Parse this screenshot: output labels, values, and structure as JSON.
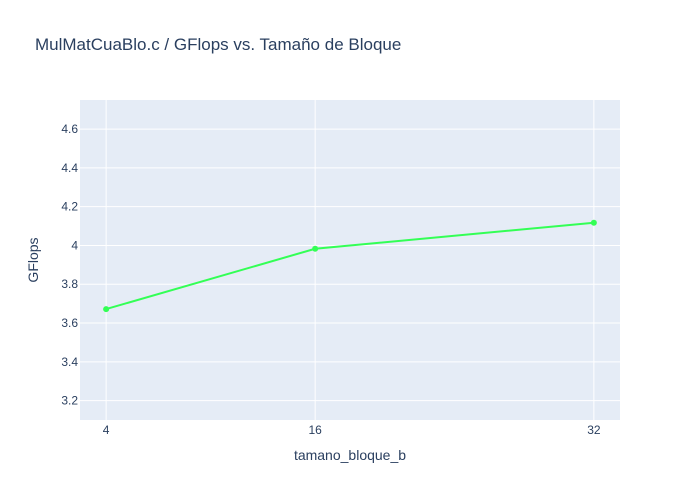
{
  "chart_data": {
    "type": "line",
    "title": "MulMatCuaBlo.c / GFlops vs. Tamaño de Bloque",
    "xlabel": "tamano_bloque_b",
    "ylabel": "GFlops",
    "x": [
      4,
      16,
      32
    ],
    "series": [
      {
        "values": [
          3.672,
          3.983,
          4.117
        ],
        "color": "#33ff55"
      }
    ],
    "xlim": [
      2.5,
      33.5
    ],
    "xticks": [
      4,
      16,
      32
    ],
    "ylim": [
      3.1,
      4.75
    ],
    "yticks": [
      3.2,
      3.4,
      3.6,
      3.8,
      4,
      4.2,
      4.4,
      4.6
    ],
    "ytick_labels": [
      "3.2",
      "3.4",
      "3.6",
      "3.8",
      "4",
      "4.2",
      "4.4",
      "4.6"
    ],
    "grid": true,
    "plot_bg": "#e5ecf6",
    "text_color": "#2a3f5f"
  }
}
